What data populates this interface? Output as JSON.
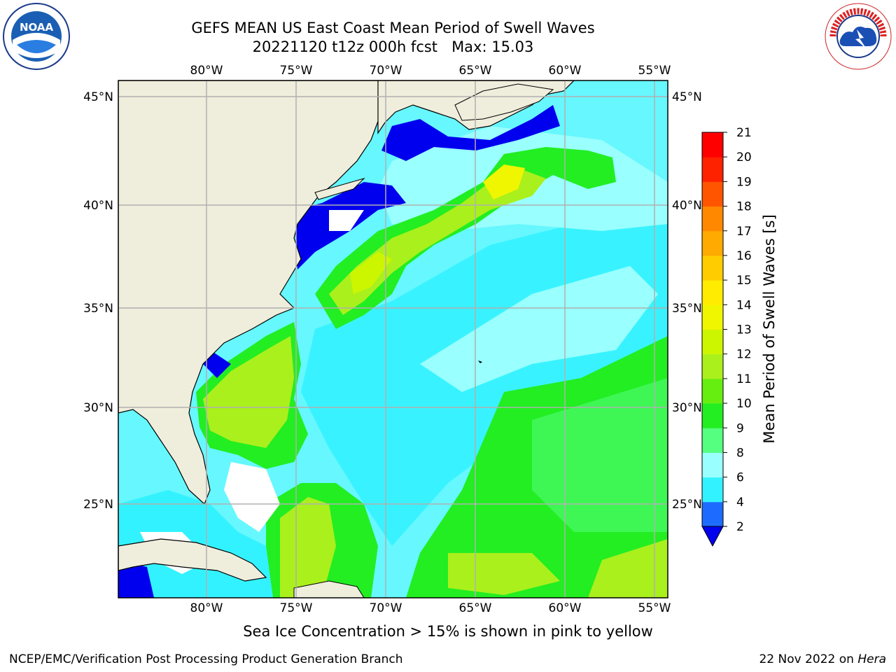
{
  "title": {
    "line1": "GEFS MEAN US East Coast Mean Period of Swell Waves",
    "line2": "20221120 t12z 000h fcst   Max: 15.03"
  },
  "map": {
    "lon_labels": [
      "80°W",
      "75°W",
      "70°W",
      "65°W",
      "60°W",
      "55°W"
    ],
    "lat_labels": [
      "45°N",
      "40°N",
      "35°N",
      "30°N",
      "25°N"
    ]
  },
  "colorbar": {
    "label": "Mean Period of Swell Waves [s]",
    "ticks": [
      "2",
      "4",
      "6",
      "8",
      "9",
      "10",
      "11",
      "12",
      "13",
      "14",
      "15",
      "16",
      "17",
      "18",
      "19",
      "20",
      "21"
    ],
    "colors": [
      "#1e6cff",
      "#00e5ff",
      "#33f2ff",
      "#99ffff",
      "#55ff80",
      "#22ee22",
      "#66ee11",
      "#aaf01c",
      "#ccf600",
      "#f0f500",
      "#ffec00",
      "#ffcc00",
      "#ffaa00",
      "#ff8800",
      "#ff5500",
      "#ff2200",
      "#ff0000"
    ],
    "extend_color": "#0000ee"
  },
  "colors": {
    "land": "#efeddc",
    "grid": "#b0b0b0",
    "no_data": "#ffffff"
  },
  "logos": {
    "left": "NOAA",
    "right": "NATIONAL WEATHER SERVICE"
  },
  "footer": {
    "caption": "Sea Ice Concentration > 15% is shown in pink to yellow",
    "credit": "NCEP/EMC/Verification Post Processing Product Generation Branch",
    "date": "22 Nov 2022 on",
    "host": "Hera"
  }
}
